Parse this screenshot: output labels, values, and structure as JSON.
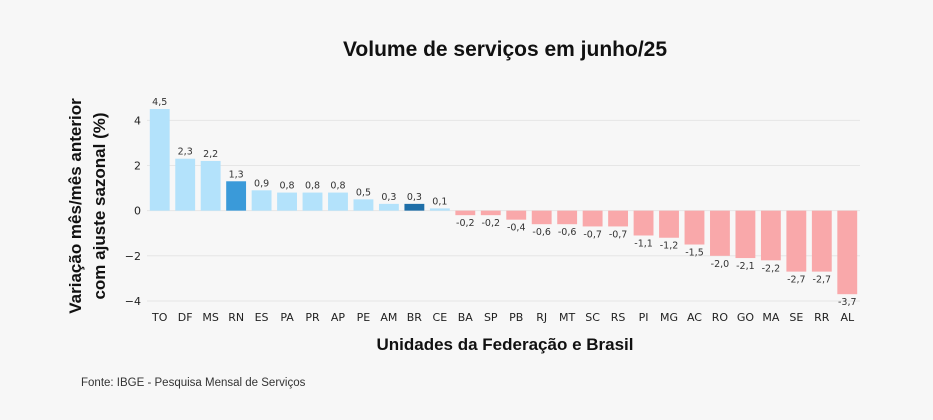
{
  "chart_data": {
    "type": "bar",
    "title": "Volume de serviços em junho/25",
    "xlabel": "Unidades da Federação e Brasil",
    "ylabel_lines": [
      "Variação mês/mês anterior",
      "com ajuste sazonal (%)"
    ],
    "ylim": [
      -4.4,
      4.9
    ],
    "yticks": [
      -4,
      -2,
      0,
      2,
      4
    ],
    "categories": [
      "TO",
      "DF",
      "MS",
      "RN",
      "ES",
      "PA",
      "PR",
      "AP",
      "PE",
      "AM",
      "BR",
      "CE",
      "BA",
      "SP",
      "PB",
      "RJ",
      "MT",
      "SC",
      "RS",
      "PI",
      "MG",
      "AC",
      "RO",
      "GO",
      "MA",
      "SE",
      "RR",
      "AL"
    ],
    "values": [
      4.5,
      2.3,
      2.2,
      1.3,
      0.9,
      0.8,
      0.8,
      0.8,
      0.5,
      0.3,
      0.3,
      0.1,
      -0.2,
      -0.2,
      -0.4,
      -0.6,
      -0.6,
      -0.7,
      -0.7,
      -1.1,
      -1.2,
      -1.5,
      -2.0,
      -2.1,
      -2.2,
      -2.7,
      -2.7,
      -3.7
    ],
    "labels": [
      "4,5",
      "2,3",
      "2,2",
      "1,3",
      "0,9",
      "0,8",
      "0,8",
      "0,8",
      "0,5",
      "0,3",
      "0,3",
      "0,1",
      "-0,2",
      "-0,2",
      "-0,4",
      "-0,6",
      "-0,6",
      "-0,7",
      "-0,7",
      "-1,1",
      "-1,2",
      "-1,5",
      "-2,0",
      "-2,1",
      "-2,2",
      "-2,7",
      "-2,7",
      "-3,7"
    ],
    "grid": true,
    "colors": {
      "positive": "#b3e2fb",
      "negative": "#f9a8aa",
      "RN": "#3a9ad9",
      "BR": "#1f6fa8"
    }
  },
  "source": "Fonte: IBGE - Pesquisa Mensal de Serviços"
}
